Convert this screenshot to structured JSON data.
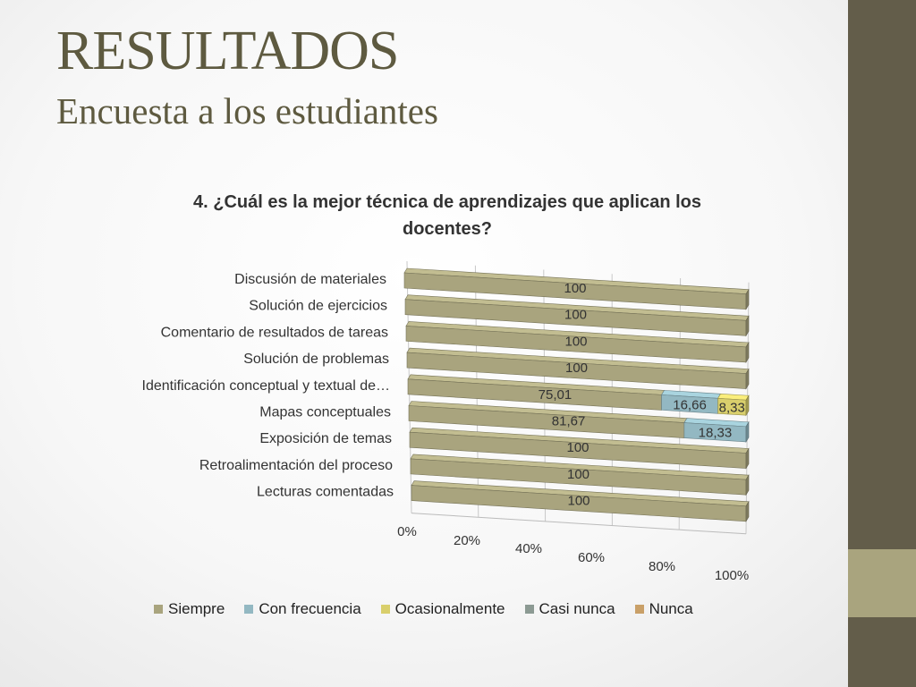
{
  "slide": {
    "title": "RESULTADOS",
    "subtitle": "Encuesta a los estudiantes"
  },
  "colors": {
    "Siempre": "#a9a47e",
    "Con frecuencia": "#93b8c2",
    "Ocasionalmente": "#d9cf6c",
    "Casi nunca": "#8c9a93",
    "Nunca": "#c9a068",
    "sidebar": "#635d4a",
    "sidebar_accent": "#a9a47e"
  },
  "chart_data": {
    "type": "bar",
    "orientation": "horizontal-stacked-3d",
    "title": "4. ¿Cuál es la mejor técnica de aprendizajes que aplican los docentes?",
    "title_lines": [
      "4. ¿Cuál es la mejor técnica de aprendizajes que aplican los",
      "docentes?"
    ],
    "categories": [
      "Discusión de materiales",
      "Solución de ejercicios",
      "Comentario de resultados de tareas",
      "Solución de problemas",
      "Identificación conceptual y textual de…",
      "Mapas conceptuales",
      "Exposición de temas",
      "Retroalimentación del proceso",
      "Lecturas comentadas"
    ],
    "series": [
      {
        "name": "Siempre",
        "values": [
          100,
          100,
          100,
          100,
          75.01,
          81.67,
          100,
          100,
          100
        ],
        "labels": [
          "100",
          "100",
          "100",
          "100",
          "75,01",
          "81,67",
          "100",
          "100",
          "100"
        ]
      },
      {
        "name": "Con frecuencia",
        "values": [
          0,
          0,
          0,
          0,
          16.66,
          18.33,
          0,
          0,
          0
        ],
        "labels": [
          "",
          "",
          "",
          "",
          "16,66",
          "18,33",
          "",
          "",
          ""
        ]
      },
      {
        "name": "Ocasionalmente",
        "values": [
          0,
          0,
          0,
          0,
          8.33,
          0,
          0,
          0,
          0
        ],
        "labels": [
          "",
          "",
          "",
          "",
          "8,33",
          "",
          "",
          "",
          ""
        ]
      },
      {
        "name": "Casi nunca",
        "values": [
          0,
          0,
          0,
          0,
          0,
          0,
          0,
          0,
          0
        ],
        "labels": [
          "",
          "",
          "",
          "",
          "",
          "",
          "",
          "",
          ""
        ]
      },
      {
        "name": "Nunca",
        "values": [
          0,
          0,
          0,
          0,
          0,
          0,
          0,
          0,
          0
        ],
        "labels": [
          "",
          "",
          "",
          "",
          "",
          "",
          "",
          "",
          ""
        ]
      }
    ],
    "x_ticks": [
      "0%",
      "20%",
      "40%",
      "60%",
      "80%",
      "100%"
    ],
    "xlim": [
      0,
      100
    ],
    "stacking": "percent",
    "grid": true,
    "legend_position": "bottom"
  }
}
